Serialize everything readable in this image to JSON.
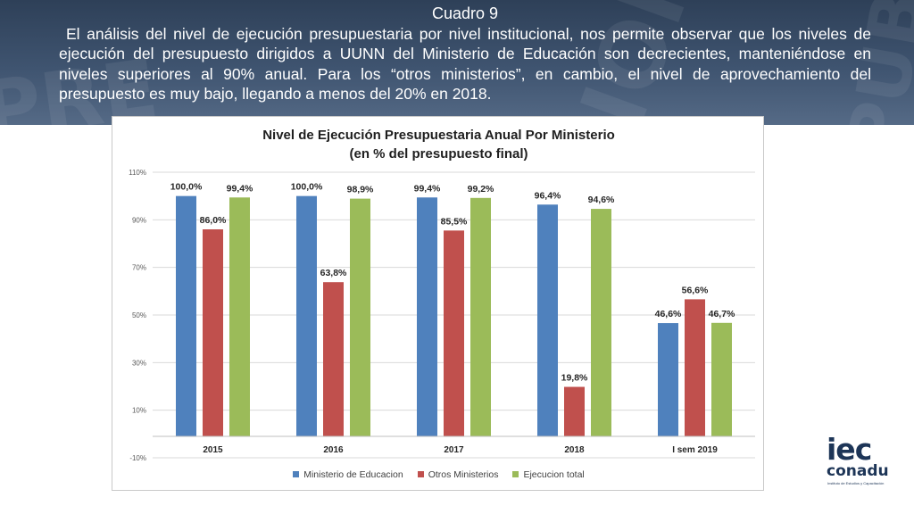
{
  "header": {
    "title": "Cuadro 9",
    "paragraph": "El análisis del nivel de ejecución presupuestaria por nivel institucional, nos permite observar que los niveles de ejecución del presupuesto dirigidos a UUNN del Ministerio de Educación son decrecientes, manteniéndose en niveles superiores al 90% anual. Para los “otros ministerios”, en cambio, el nivel de aprovechamiento del presupuesto es muy bajo, llegando a menos del 20% en 2018."
  },
  "chart_data": {
    "type": "bar",
    "title": "Nivel de Ejecución Presupuestaria Anual Por Ministerio",
    "subtitle": "(en % del presupuesto final)",
    "categories": [
      "2015",
      "2016",
      "2017",
      "2018",
      "I sem 2019"
    ],
    "series": [
      {
        "name": "Ministerio de Educacion",
        "color": "#4f81bd",
        "values": [
          100.0,
          100.0,
          99.4,
          96.4,
          46.6
        ],
        "labels": [
          "100,0%",
          "100,0%",
          "99,4%",
          "96,4%",
          "46,6%"
        ]
      },
      {
        "name": "Otros Ministerios",
        "color": "#c0504d",
        "values": [
          86.0,
          63.8,
          85.5,
          19.8,
          56.6
        ],
        "labels": [
          "86,0%",
          "63,8%",
          "85,5%",
          "19,8%",
          "56,6%"
        ]
      },
      {
        "name": "Ejecucion total",
        "color": "#9bbb59",
        "values": [
          99.4,
          98.9,
          99.2,
          94.6,
          46.7
        ],
        "labels": [
          "99,4%",
          "98,9%",
          "99,2%",
          "94,6%",
          "46,7%"
        ]
      }
    ],
    "yticks": [
      "110%",
      "90%",
      "70%",
      "50%",
      "30%",
      "10%",
      "-10%"
    ],
    "ytick_values": [
      110,
      90,
      70,
      50,
      30,
      10,
      -10
    ],
    "ylim": [
      -10,
      110
    ],
    "grid": true,
    "legend_position": "bottom"
  },
  "logo": {
    "name": "iec",
    "org": "conadu",
    "tagline": "Instituto de Estudios y Capacitación"
  }
}
